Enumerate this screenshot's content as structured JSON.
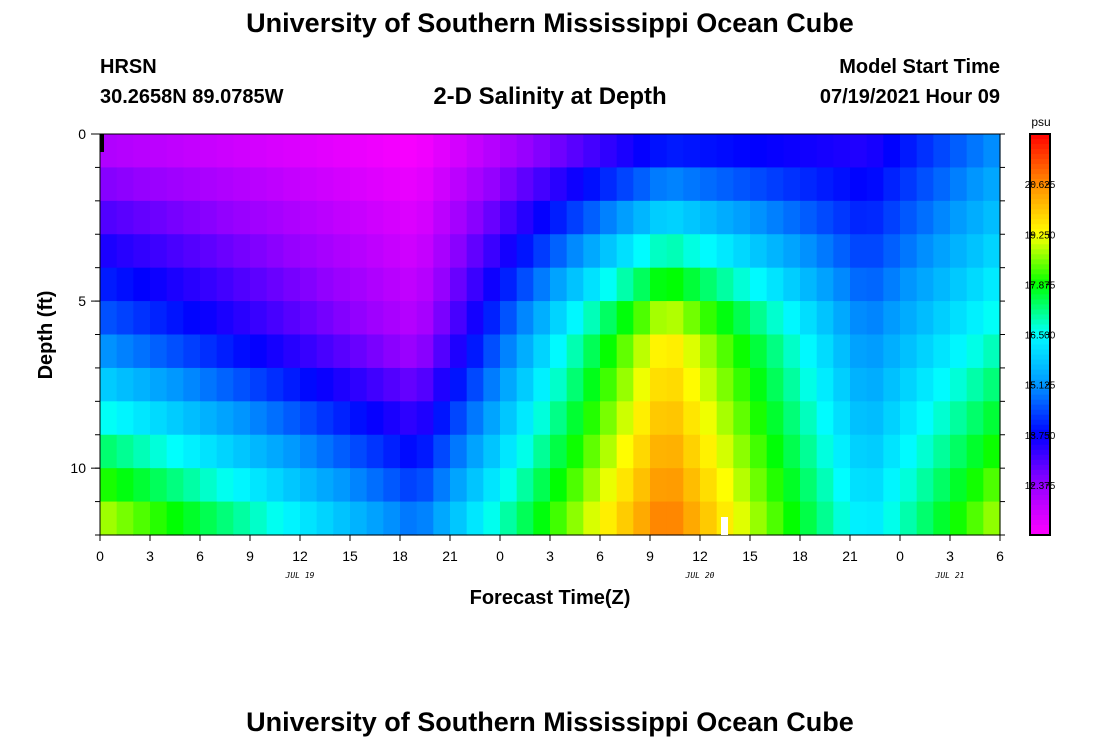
{
  "header": {
    "top_title": "University of Southern Mississippi Ocean Cube",
    "station": "HRSN",
    "coordinates": "30.2658N  89.0785W",
    "main_title": "2-D Salinity at Depth",
    "model_start_label": "Model Start Time",
    "model_start_value": "07/19/2021 Hour 09",
    "bottom_title": "University of Southern Mississippi Ocean Cube"
  },
  "chart_data": {
    "type": "heatmap",
    "title": "2-D Salinity at Depth",
    "xlabel": "Forecast Time(Z)",
    "ylabel": "Depth (ft)",
    "x_hours_range": [
      0,
      54
    ],
    "y_depth_range": [
      0,
      12
    ],
    "x_tick_labels": [
      "0",
      "3",
      "6",
      "9",
      "12",
      "15",
      "18",
      "21",
      "0",
      "3",
      "6",
      "9",
      "12",
      "15",
      "18",
      "21",
      "0",
      "3",
      "6"
    ],
    "date_labels": [
      {
        "label": "JUL 19",
        "hour": 12
      },
      {
        "label": "JUL 20",
        "hour": 36
      },
      {
        "label": "JUL 21",
        "hour": 51
      }
    ],
    "y_tick_labels": [
      "0",
      "5",
      "10"
    ],
    "y_tick_values": [
      0,
      5,
      10
    ],
    "colorbar": {
      "unit": "psu",
      "min": 11.0,
      "max": 22.0,
      "tick_labels": [
        "20.625",
        "19.250",
        "17.875",
        "16.500",
        "15.125",
        "13.750",
        "12.375"
      ],
      "colors": [
        "#ff00ff",
        "#9600ff",
        "#0000ff",
        "#0096ff",
        "#00ffff",
        "#00ff00",
        "#ffff00",
        "#ff8c00",
        "#ff0000"
      ]
    },
    "depth_bins": 12,
    "time_steps": 54,
    "salinity_profile_psu": {
      "depths_ft": [
        0,
        6,
        12
      ],
      "hour_0": [
        11.8,
        14.8,
        19.2
      ],
      "hour_19": [
        11.0,
        12.0,
        15.0
      ],
      "hour_34": [
        13.5,
        19.5,
        21.0
      ],
      "hour_46": [
        13.3,
        15.0,
        16.2
      ],
      "hour_54": [
        15.0,
        16.8,
        19.0
      ]
    }
  }
}
